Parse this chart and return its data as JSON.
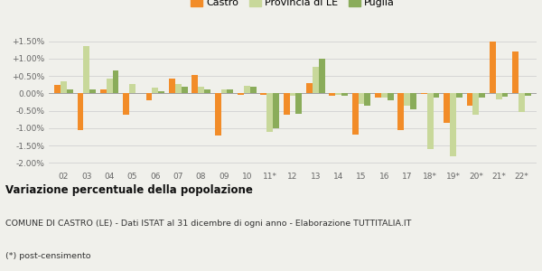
{
  "categories": [
    "02",
    "03",
    "04",
    "05",
    "06",
    "07",
    "08",
    "09",
    "10",
    "11*",
    "12",
    "13",
    "14",
    "15",
    "16",
    "17",
    "18*",
    "19*",
    "20*",
    "21*",
    "22*"
  ],
  "castro": [
    0.25,
    -1.05,
    0.1,
    -0.62,
    -0.2,
    0.42,
    0.52,
    -1.22,
    -0.05,
    -0.05,
    -0.62,
    0.3,
    -0.08,
    -1.2,
    -0.12,
    -1.05,
    -0.02,
    -0.85,
    -0.35,
    1.5,
    1.2
  ],
  "provincia": [
    0.35,
    1.35,
    0.42,
    0.27,
    0.17,
    0.28,
    0.2,
    0.12,
    0.22,
    -1.1,
    -0.08,
    0.75,
    -0.05,
    -0.3,
    -0.12,
    -0.35,
    -1.6,
    -1.82,
    -0.62,
    -0.18,
    -0.55
  ],
  "puglia": [
    0.1,
    0.1,
    0.65,
    0.0,
    0.05,
    0.18,
    0.1,
    0.1,
    0.18,
    -1.0,
    -0.6,
    1.0,
    -0.08,
    -0.35,
    -0.2,
    -0.45,
    -0.12,
    -0.12,
    -0.12,
    -0.1,
    -0.08
  ],
  "color_castro": "#f28c28",
  "color_provincia": "#c8d89a",
  "color_puglia": "#8aac5a",
  "title": "Variazione percentuale della popolazione",
  "subtitle": "COMUNE DI CASTRO (LE) - Dati ISTAT al 31 dicembre di ogni anno - Elaborazione TUTTITALIA.IT",
  "footnote": "(*) post-censimento",
  "ylim": [
    -2.15,
    1.75
  ],
  "yticks": [
    -2.0,
    -1.5,
    -1.0,
    -0.5,
    0.0,
    0.5,
    1.0,
    1.5
  ],
  "ytick_labels": [
    "-2.00%",
    "-1.50%",
    "-1.00%",
    "-0.50%",
    "0.00%",
    "+0.50%",
    "+1.00%",
    "+1.50%"
  ],
  "bg_color": "#f0f0eb",
  "bar_width": 0.27
}
